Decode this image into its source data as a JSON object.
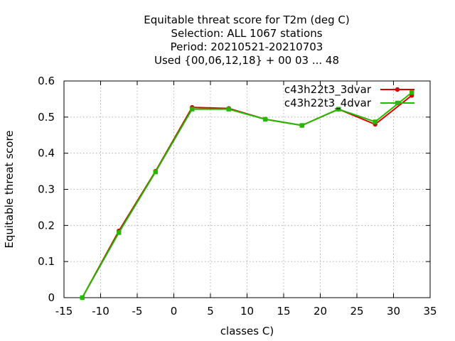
{
  "chart_data": {
    "type": "line",
    "title_lines": [
      "Equitable threat score  for T2m (deg C)",
      "Selection: ALL   1067 stations",
      "Period: 20210521-20210703",
      "Used {00,06,12,18} + 00 03 ... 48"
    ],
    "xlabel": "classes C)",
    "ylabel": "Equitable threat score",
    "xlim": [
      -15,
      35
    ],
    "ylim": [
      0,
      0.6
    ],
    "xticks": [
      -15,
      -10,
      -5,
      0,
      5,
      10,
      15,
      20,
      25,
      30,
      35
    ],
    "yticks": [
      0,
      0.1,
      0.2,
      0.3,
      0.4,
      0.5,
      0.6
    ],
    "xtick_labels": [
      "-15",
      "-10",
      "-5",
      "0",
      "5",
      "10",
      "15",
      "20",
      "25",
      "30",
      "35"
    ],
    "ytick_labels": [
      "0",
      "0.1",
      "0.2",
      "0.3",
      "0.4",
      "0.5",
      "0.6"
    ],
    "grid": true,
    "legend_position": "top-right",
    "x": [
      -12.5,
      -7.5,
      -2.5,
      2.5,
      7.5,
      12.5,
      17.5,
      22.5,
      27.5,
      32.5
    ],
    "series": [
      {
        "name": "c43h22t3_3dvar",
        "color": "#dd0000",
        "marker": "circle",
        "values": [
          0.0,
          0.185,
          0.35,
          0.527,
          0.524,
          0.494,
          0.477,
          0.522,
          0.48,
          0.56
        ]
      },
      {
        "name": "c43h22t3_4dvar",
        "color": "#22bb00",
        "marker": "square",
        "values": [
          0.0,
          0.18,
          0.348,
          0.522,
          0.522,
          0.494,
          0.477,
          0.522,
          0.487,
          0.568
        ]
      }
    ]
  }
}
